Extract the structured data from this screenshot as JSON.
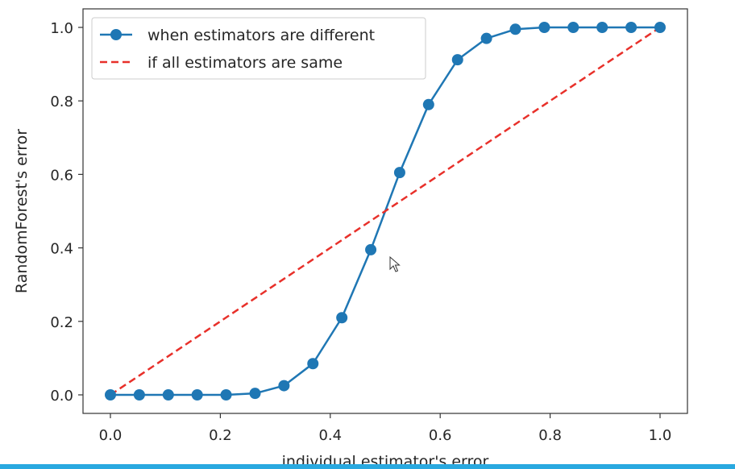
{
  "chart_data": {
    "type": "line",
    "title": "",
    "xlabel": "individual estimator's error",
    "ylabel": "RandomForest's error",
    "xlim": [
      -0.05,
      1.05
    ],
    "ylim": [
      -0.05,
      1.05
    ],
    "xticks": [
      0.0,
      0.2,
      0.4,
      0.6,
      0.8,
      1.0
    ],
    "yticks": [
      0.0,
      0.2,
      0.4,
      0.6,
      0.8,
      1.0
    ],
    "xtick_labels": [
      "0.0",
      "0.2",
      "0.4",
      "0.6",
      "0.8",
      "1.0"
    ],
    "ytick_labels": [
      "0.0",
      "0.2",
      "0.4",
      "0.6",
      "0.8",
      "1.0"
    ],
    "grid": false,
    "legend": {
      "position": "upper-left"
    },
    "series": [
      {
        "name": "when estimators are different",
        "style": "solid-with-markers",
        "color": "#1f77b4",
        "x": [
          0.0,
          0.0526,
          0.1053,
          0.1579,
          0.2105,
          0.2632,
          0.3158,
          0.3684,
          0.4211,
          0.4737,
          0.5263,
          0.5789,
          0.6316,
          0.6842,
          0.7368,
          0.7895,
          0.8421,
          0.8947,
          0.9474,
          1.0
        ],
        "y": [
          0.0,
          0.0,
          0.0,
          0.0,
          0.0,
          0.004,
          0.025,
          0.085,
          0.21,
          0.395,
          0.605,
          0.79,
          0.912,
          0.97,
          0.995,
          1.0,
          1.0,
          1.0,
          1.0,
          1.0
        ]
      },
      {
        "name": "if all estimators are same",
        "style": "dashed",
        "color": "#e8302a",
        "x": [
          0.0,
          1.0
        ],
        "y": [
          0.0,
          1.0
        ]
      }
    ]
  }
}
